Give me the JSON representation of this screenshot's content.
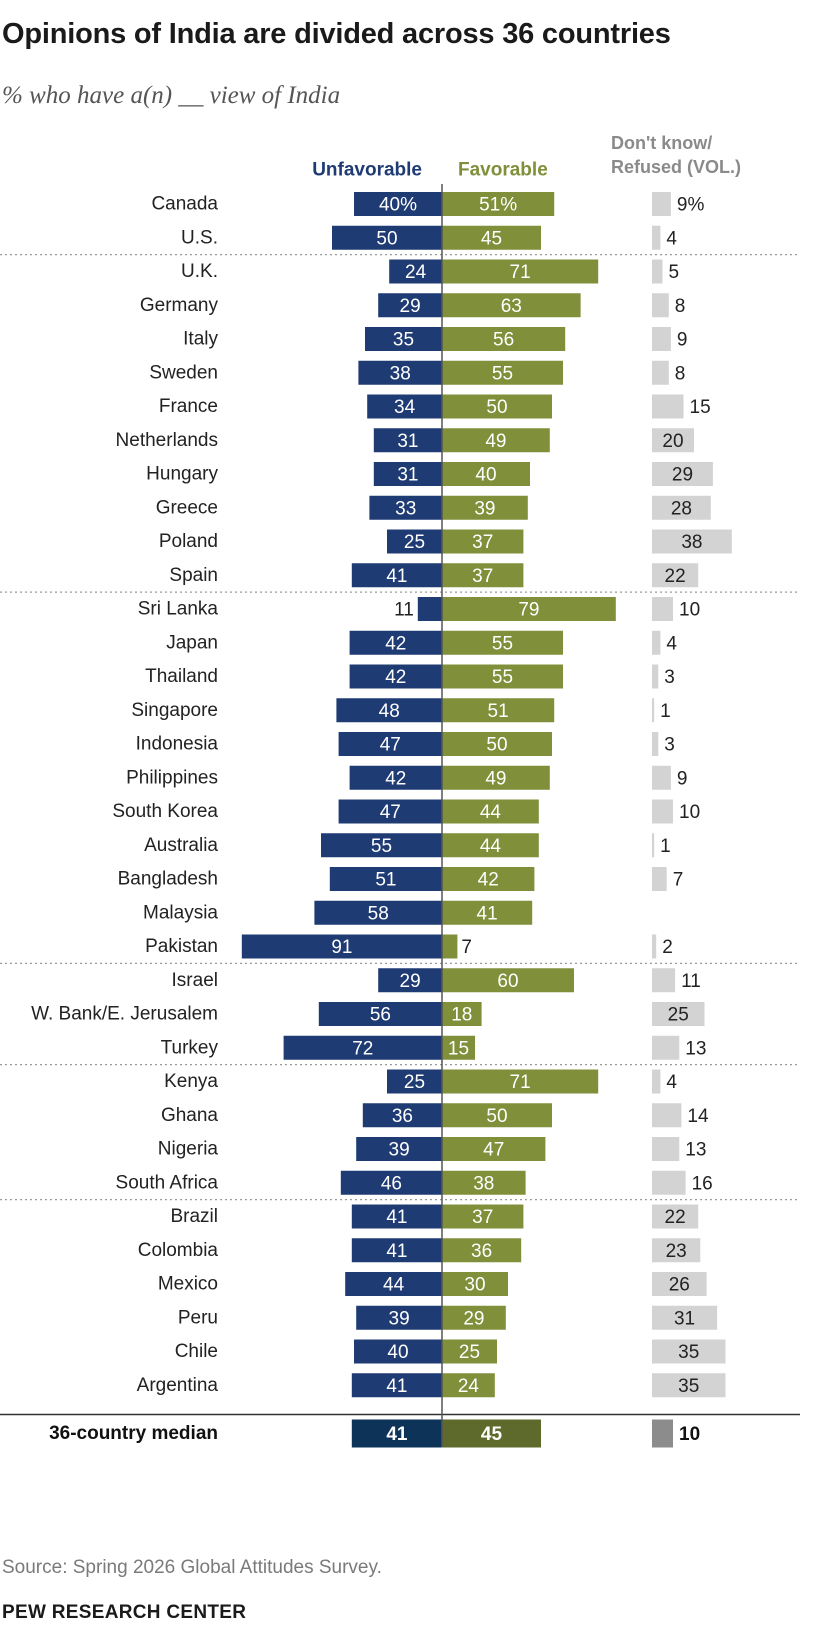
{
  "header": {
    "title": "Opinions of India are divided across 36 countries",
    "subtitle": "% who have a(n) __ view of India"
  },
  "footer": {
    "source": "Source: Spring 2026 Global Attitudes Survey.",
    "brand": "PEW RESEARCH CENTER"
  },
  "colors": {
    "unfavorable": "#1f3b73",
    "favorable": "#7f8f3a",
    "dont_know": "#d3d3d3",
    "median_unfavorable": "#0e3358",
    "median_favorable": "#5e6a2b",
    "median_dont_know": "#8c8c8c",
    "separator": "#9a9a9a",
    "axis": "#555555"
  },
  "chart_data": {
    "type": "bar",
    "orientation": "horizontal diverging",
    "series": [
      {
        "name": "Unfavorable",
        "values": [
          40,
          50,
          24,
          29,
          35,
          38,
          34,
          31,
          31,
          33,
          25,
          41,
          11,
          42,
          42,
          48,
          47,
          42,
          47,
          55,
          51,
          58,
          91,
          29,
          56,
          72,
          25,
          36,
          39,
          46,
          41,
          41,
          44,
          39,
          40,
          41
        ],
        "labels": [
          "40%",
          "50",
          "24",
          "29",
          "35",
          "38",
          "34",
          "31",
          "31",
          "33",
          "25",
          "41",
          "11",
          "42",
          "42",
          "48",
          "47",
          "42",
          "47",
          "55",
          "51",
          "58",
          "91",
          "29",
          "56",
          "72",
          "25",
          "36",
          "39",
          "46",
          "41",
          "41",
          "44",
          "39",
          "40",
          "41"
        ]
      },
      {
        "name": "Favorable",
        "values": [
          51,
          45,
          71,
          63,
          56,
          55,
          50,
          49,
          40,
          39,
          37,
          37,
          79,
          55,
          55,
          51,
          50,
          49,
          44,
          44,
          42,
          41,
          7,
          60,
          18,
          15,
          71,
          50,
          47,
          38,
          37,
          36,
          30,
          29,
          25,
          24
        ],
        "labels": [
          "51%",
          "45",
          "71",
          "63",
          "56",
          "55",
          "50",
          "49",
          "40",
          "39",
          "37",
          "37",
          "79",
          "55",
          "55",
          "51",
          "50",
          "49",
          "44",
          "44",
          "42",
          "41",
          "7",
          "60",
          "18",
          "15",
          "71",
          "50",
          "47",
          "38",
          "37",
          "36",
          "30",
          "29",
          "25",
          "24"
        ]
      },
      {
        "name": "Don't know/ Refused (VOL.)",
        "name_lines": [
          "Don't know/",
          "Refused (VOL.)"
        ],
        "values": [
          9,
          4,
          5,
          8,
          9,
          8,
          15,
          20,
          29,
          28,
          38,
          22,
          10,
          4,
          3,
          1,
          3,
          9,
          10,
          1,
          7,
          null,
          2,
          11,
          25,
          13,
          4,
          14,
          13,
          16,
          22,
          23,
          26,
          31,
          35,
          35
        ],
        "labels": [
          "9%",
          "4",
          "5",
          "8",
          "9",
          "8",
          "15",
          "20",
          "29",
          "28",
          "38",
          "22",
          "10",
          "4",
          "3",
          "1",
          "3",
          "9",
          "10",
          "1",
          "7",
          "",
          "2",
          "11",
          "25",
          "13",
          "4",
          "14",
          "13",
          "16",
          "22",
          "23",
          "26",
          "31",
          "35",
          "35"
        ]
      }
    ],
    "categories": [
      "Canada",
      "U.S.",
      "U.K.",
      "Germany",
      "Italy",
      "Sweden",
      "France",
      "Netherlands",
      "Hungary",
      "Greece",
      "Poland",
      "Spain",
      "Sri Lanka",
      "Japan",
      "Thailand",
      "Singapore",
      "Indonesia",
      "Philippines",
      "South Korea",
      "Australia",
      "Bangladesh",
      "Malaysia",
      "Pakistan",
      "Israel",
      "W. Bank/E. Jerusalem",
      "Turkey",
      "Kenya",
      "Ghana",
      "Nigeria",
      "South Africa",
      "Brazil",
      "Colombia",
      "Mexico",
      "Peru",
      "Chile",
      "Argentina"
    ],
    "group_breaks_after": [
      1,
      11,
      22,
      25,
      29
    ],
    "median": {
      "label": "36-country median",
      "unfavorable": 41,
      "favorable": 45,
      "dont_know": 10
    }
  }
}
